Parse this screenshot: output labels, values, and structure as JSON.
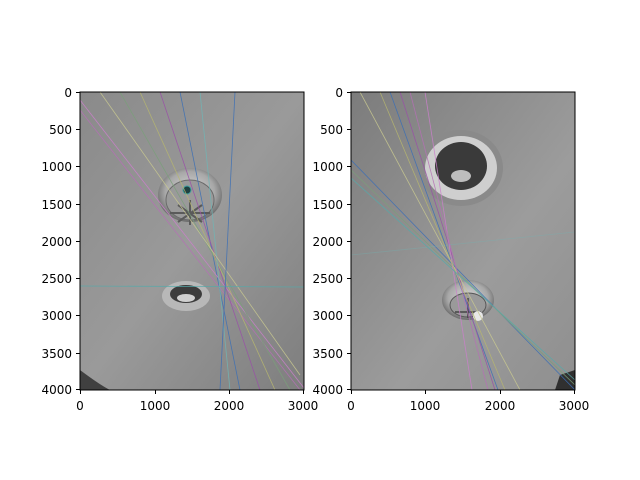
{
  "figure": {
    "background": "#ffffff",
    "panels": [
      {
        "name": "left",
        "xticks": [
          "0",
          "1000",
          "2000",
          "3000"
        ],
        "yticks": [
          "0",
          "500",
          "1000",
          "1500",
          "2000",
          "2500",
          "3000",
          "3500",
          "4000"
        ],
        "scene": "grayscale photo of ceiling with smoke detector and round light fixture, overlaid epipolar lines"
      },
      {
        "name": "right",
        "xticks": [
          "0",
          "1000",
          "2000",
          "3000"
        ],
        "yticks": [
          "0",
          "500",
          "1000",
          "1500",
          "2000",
          "2500",
          "3000",
          "3500",
          "4000"
        ],
        "scene": "grayscale photo of ceiling with round light fixture and smoke detector, overlaid epipolar lines"
      }
    ],
    "line_colors": [
      "#3b6fb6",
      "#b66fb6",
      "#6fb6b6",
      "#b6b66f",
      "#7aa07a",
      "#9a4fa8",
      "#cc7fcc",
      "#55aaaa",
      "#c8c890"
    ]
  }
}
